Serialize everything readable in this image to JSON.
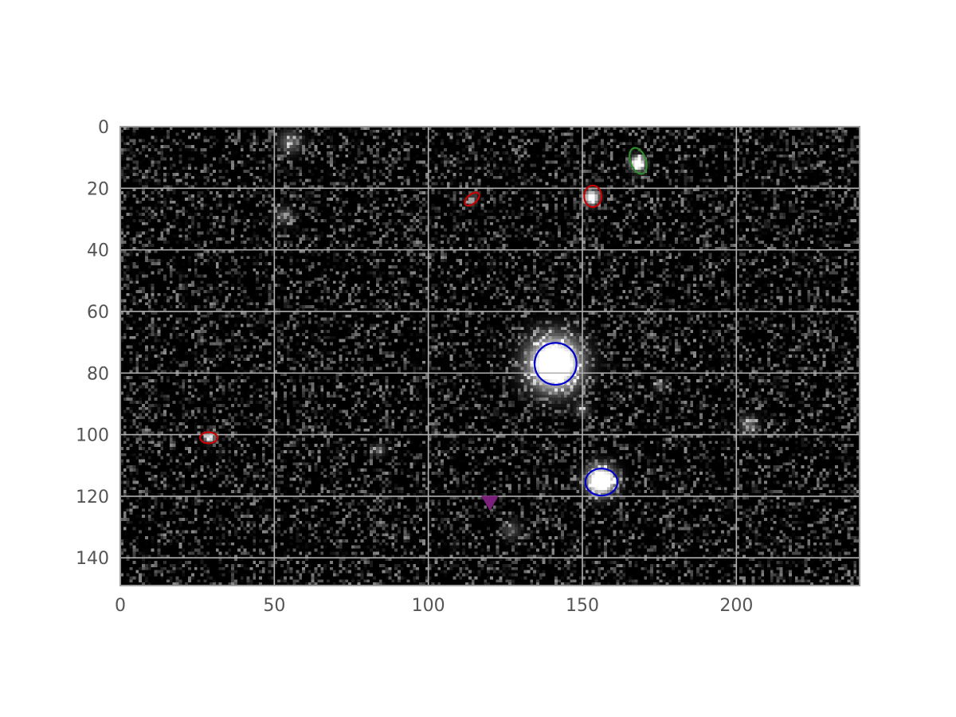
{
  "chart_data": {
    "type": "scatter",
    "title": "",
    "xlabel": "",
    "ylabel": "",
    "xlim": [
      0,
      240
    ],
    "ylim": [
      149,
      0
    ],
    "y_axis_inverted": true,
    "grid": true,
    "legend": "none",
    "background": "grayscale noise image (dark field with bright sources)",
    "x_ticks": [
      0,
      50,
      100,
      150,
      200
    ],
    "y_ticks": [
      0,
      20,
      40,
      60,
      80,
      100,
      120,
      140
    ],
    "x_tick_labels": [
      "0",
      "50",
      "100",
      "150",
      "200"
    ],
    "y_tick_labels": [
      "0",
      "20",
      "40",
      "60",
      "80",
      "100",
      "120",
      "140"
    ],
    "sources": [
      {
        "x": 141,
        "y": 77,
        "brightness": 1.0,
        "spread": 5.5
      },
      {
        "x": 156,
        "y": 115,
        "brightness": 0.95,
        "spread": 3.0
      },
      {
        "x": 168,
        "y": 12,
        "brightness": 0.8,
        "spread": 1.6
      },
      {
        "x": 153,
        "y": 23,
        "brightness": 0.75,
        "spread": 1.6
      },
      {
        "x": 114,
        "y": 24,
        "brightness": 0.5,
        "spread": 1.0
      },
      {
        "x": 29,
        "y": 101,
        "brightness": 0.6,
        "spread": 1.2
      },
      {
        "x": 55,
        "y": 5,
        "brightness": 0.25,
        "spread": 2.5
      },
      {
        "x": 53,
        "y": 29,
        "brightness": 0.2,
        "spread": 2.0
      },
      {
        "x": 84,
        "y": 105,
        "brightness": 0.25,
        "spread": 1.3
      },
      {
        "x": 150,
        "y": 92,
        "brightness": 0.22,
        "spread": 1.6
      },
      {
        "x": 204,
        "y": 97,
        "brightness": 0.25,
        "spread": 2.0
      },
      {
        "x": 175,
        "y": 84,
        "brightness": 0.2,
        "spread": 1.3
      },
      {
        "x": 127,
        "y": 131,
        "brightness": 0.18,
        "spread": 2.0
      }
    ],
    "ellipses": [
      {
        "x": 141.3,
        "y": 77.0,
        "width": 13.6,
        "height": 13.6,
        "angle": 0,
        "color": "#0000cc"
      },
      {
        "x": 156.2,
        "y": 115.4,
        "width": 10.4,
        "height": 8.8,
        "angle": 0,
        "color": "#0000cc"
      },
      {
        "x": 168.1,
        "y": 11.1,
        "width": 5.0,
        "height": 8.8,
        "angle": -20,
        "color": "#2e8b2e"
      },
      {
        "x": 153.4,
        "y": 22.6,
        "width": 5.6,
        "height": 7.0,
        "angle": 0,
        "color": "#cc0000"
      },
      {
        "x": 114.2,
        "y": 23.5,
        "width": 5.6,
        "height": 3.0,
        "angle": -40,
        "color": "#cc0000"
      },
      {
        "x": 28.7,
        "y": 101.0,
        "width": 5.6,
        "height": 3.6,
        "angle": 0,
        "color": "#cc0000"
      }
    ],
    "markers": [
      {
        "x": 120,
        "y": 122,
        "shape": "triangle-down",
        "color": "#7a1f7a"
      }
    ]
  }
}
